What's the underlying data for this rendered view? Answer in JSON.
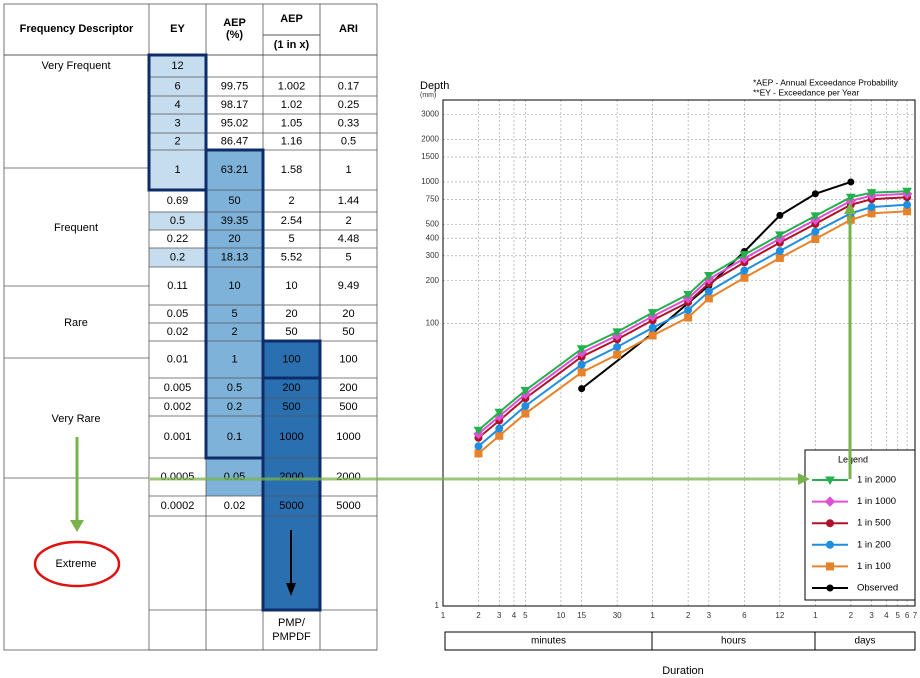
{
  "table": {
    "header": [
      "Frequency Descriptor",
      "EY",
      [
        "AEP",
        "(%)"
      ],
      [
        "AEP",
        "(1 in x)"
      ],
      "ARI"
    ],
    "descriptors": [
      "Very Frequent",
      "Frequent",
      "Rare",
      "Very Rare",
      "Extreme"
    ],
    "rows": [
      [
        "12",
        null,
        null,
        null
      ],
      [
        "6",
        "99.75",
        "1.002",
        "0.17"
      ],
      [
        "4",
        "98.17",
        "1.02",
        "0.25"
      ],
      [
        "3",
        "95.02",
        "1.05",
        "0.33"
      ],
      [
        "2",
        "86.47",
        "1.16",
        "0.5"
      ],
      [
        "1",
        "63.21",
        "1.58",
        "1"
      ],
      [
        "0.69",
        "50",
        "2",
        "1.44"
      ],
      [
        "0.5",
        "39.35",
        "2.54",
        "2"
      ],
      [
        "0.22",
        "20",
        "5",
        "4.48"
      ],
      [
        "0.2",
        "18.13",
        "5.52",
        "5"
      ],
      [
        "0.11",
        "10",
        "10",
        "9.49"
      ],
      [
        "0.05",
        "5",
        "20",
        "20"
      ],
      [
        "0.02",
        "2",
        "50",
        "50"
      ],
      [
        "0.01",
        "1",
        "100",
        "100"
      ],
      [
        "0.005",
        "0.5",
        "200",
        "200"
      ],
      [
        "0.002",
        "0.2",
        "500",
        "500"
      ],
      [
        "0.001",
        "0.1",
        "1000",
        "1000"
      ],
      [
        "0.0005",
        "0.05",
        "2000",
        "2000"
      ],
      [
        "0.0002",
        "0.02",
        "5000",
        "5000"
      ],
      [
        null,
        null,
        [
          "PMP/",
          "PMPDF"
        ],
        null
      ]
    ]
  },
  "chart_data": {
    "type": "line",
    "y_label": "Depth",
    "y_unit": "(mm)",
    "x_label": "Duration",
    "notes": [
      "*AEP - Annual Exceedance Probability",
      "**EY - Exceedance per Year"
    ],
    "x_groups": [
      "minutes",
      "hours",
      "days"
    ],
    "log_x": true,
    "log_y": true,
    "grid": true,
    "xlim": [
      1,
      10080
    ],
    "ylim": [
      1,
      3800
    ],
    "xticks": [
      1,
      2,
      3,
      4,
      5,
      10,
      15,
      30,
      {
        "value": 60,
        "label": "1"
      },
      {
        "value": 120,
        "label": "2"
      },
      {
        "value": 180,
        "label": "3"
      },
      {
        "value": 360,
        "label": "6"
      },
      {
        "value": 720,
        "label": "12"
      },
      {
        "value": 1440,
        "label": "1"
      },
      {
        "value": 2880,
        "label": "2"
      },
      {
        "value": 4320,
        "label": "3"
      },
      {
        "value": 5760,
        "label": "4"
      },
      {
        "value": 7200,
        "label": "5"
      },
      {
        "value": 8640,
        "label": "6"
      },
      {
        "value": 10080,
        "label": "7"
      }
    ],
    "yticks": [
      1,
      100,
      200,
      300,
      400,
      500,
      750,
      1000,
      1500,
      2000,
      3000
    ],
    "legend_title": "Legend",
    "legend": "lower right",
    "series": [
      {
        "name": "1 in 2000",
        "color": "#22b14c",
        "marker": "triangle-down",
        "x": [
          2,
          3,
          5,
          15,
          30,
          60,
          120,
          180,
          360,
          720,
          1440,
          2880,
          4320,
          8640
        ],
        "values": [
          17.5,
          23.5,
          33.5,
          66,
          87,
          119,
          160,
          218,
          306,
          422,
          575,
          780,
          840,
          860
        ]
      },
      {
        "name": "1 in 1000",
        "color": "#e04fd6",
        "marker": "diamond",
        "x": [
          2,
          3,
          5,
          15,
          30,
          60,
          120,
          180,
          360,
          720,
          1440,
          2880,
          4320,
          8640
        ],
        "values": [
          16.5,
          22,
          31.5,
          62,
          82,
          112,
          150,
          205,
          288,
          397,
          540,
          735,
          800,
          825
        ]
      },
      {
        "name": "1 in 500",
        "color": "#b0122a",
        "marker": "circle",
        "x": [
          2,
          3,
          5,
          15,
          30,
          60,
          120,
          180,
          360,
          720,
          1440,
          2880,
          4320,
          8640
        ],
        "values": [
          15.5,
          20.5,
          29.5,
          58,
          77,
          105,
          141,
          192,
          270,
          372,
          505,
          690,
          755,
          780
        ]
      },
      {
        "name": "1 in 200",
        "color": "#1f8ee0",
        "marker": "circle",
        "x": [
          2,
          3,
          5,
          15,
          30,
          60,
          120,
          180,
          360,
          720,
          1440,
          2880,
          4320,
          8640
        ],
        "values": [
          13.5,
          18,
          26,
          51,
          68,
          93,
          124,
          168,
          236,
          325,
          445,
          600,
          665,
          690
        ]
      },
      {
        "name": "1 in 100",
        "color": "#e8822a",
        "marker": "square",
        "x": [
          2,
          3,
          5,
          15,
          30,
          60,
          120,
          180,
          360,
          720,
          1440,
          2880,
          4320,
          8640
        ],
        "values": [
          12,
          16,
          23,
          45,
          60,
          82,
          110,
          150,
          210,
          290,
          395,
          540,
          600,
          620
        ]
      },
      {
        "name": "Observed",
        "color": "#000000",
        "marker": "dot",
        "x": [
          15,
          60,
          180,
          360,
          720,
          1440,
          2880
        ],
        "values": [
          34.5,
          85,
          185,
          322,
          580,
          825,
          1000
        ]
      }
    ]
  }
}
